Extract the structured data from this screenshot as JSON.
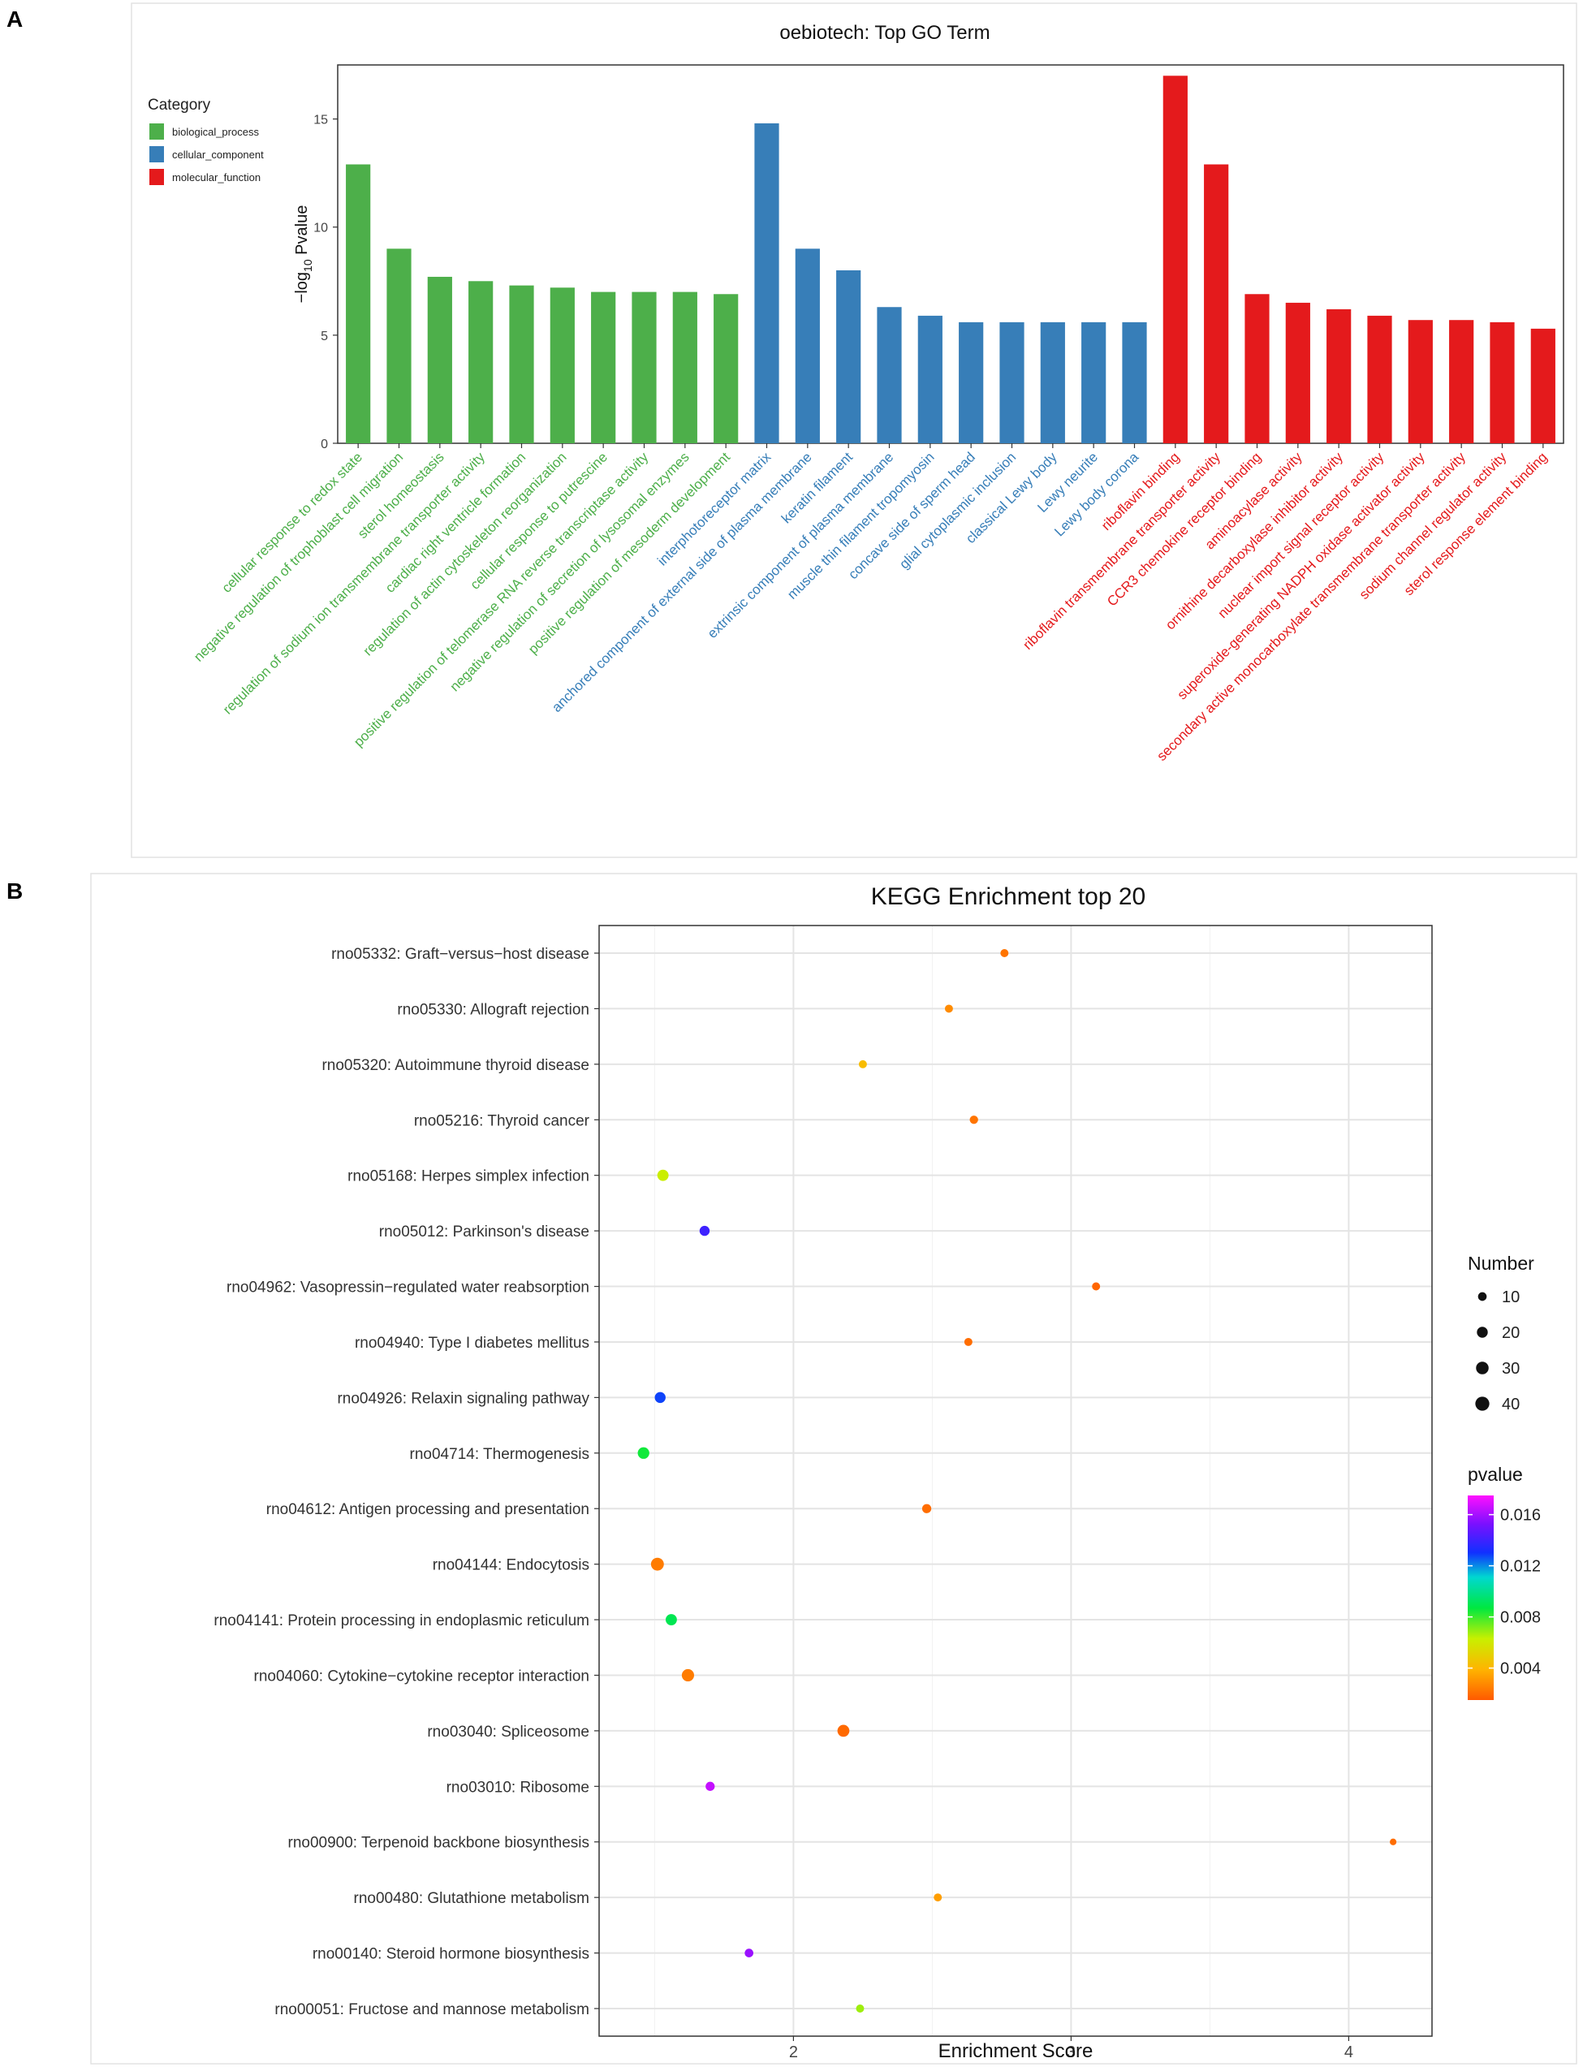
{
  "panels": {
    "a_label": "A",
    "b_label": "B"
  },
  "chart_data": [
    {
      "type": "bar",
      "title": "oebiotech: Top GO Term",
      "ylabel_prefix": "−log",
      "ylabel_sub": "10",
      "ylabel_suffix": " Pvalue",
      "ylim": [
        0,
        17.5
      ],
      "yticks": [
        0,
        5,
        10,
        15
      ],
      "legend": {
        "title": "Category",
        "position": "top-left",
        "items": [
          {
            "name": "biological_process",
            "color": "#4daf4a"
          },
          {
            "name": "cellular_component",
            "color": "#377eb8"
          },
          {
            "name": "molecular_function",
            "color": "#e41a1c"
          }
        ]
      },
      "categories": [
        "cellular response to redox state",
        "negative regulation of trophoblast cell migration",
        "sterol homeostasis",
        "regulation of sodium ion transmembrane transporter activity",
        "cardiac right ventricle formation",
        "regulation of actin cytoskeleton reorganization",
        "cellular response to putrescine",
        "positive regulation of telomerase RNA reverse transcriptase activity",
        "negative regulation of secretion of lysosomal enzymes",
        "positive regulation of mesoderm development",
        "interphotoreceptor matrix",
        "anchored component of external side of plasma membrane",
        "keratin filament",
        "extrinsic component of plasma membrane",
        "muscle thin filament tropomyosin",
        "concave side of sperm head",
        "glial cytoplasmic inclusion",
        "classical Lewy body",
        "Lewy neurite",
        "Lewy body corona",
        "riboflavin binding",
        "riboflavin transmembrane transporter activity",
        "CCR3 chemokine receptor binding",
        "aminoacylase activity",
        "ornithine decarboxylase inhibitor activity",
        "nuclear import signal receptor activity",
        "superoxide-generating NADPH oxidase activator activity",
        "secondary active monocarboxylate transmembrane transporter activity",
        "sodium channel regulator activity",
        "sterol response element binding"
      ],
      "values": [
        12.9,
        9.0,
        7.7,
        7.5,
        7.3,
        7.2,
        7.0,
        7.0,
        7.0,
        6.9,
        14.8,
        9.0,
        8.0,
        6.3,
        5.9,
        5.6,
        5.6,
        5.6,
        5.6,
        5.6,
        17.0,
        12.9,
        6.9,
        6.5,
        6.2,
        5.9,
        5.7,
        5.7,
        5.6,
        5.3
      ],
      "groups": [
        0,
        0,
        0,
        0,
        0,
        0,
        0,
        0,
        0,
        0,
        1,
        1,
        1,
        1,
        1,
        1,
        1,
        1,
        1,
        1,
        2,
        2,
        2,
        2,
        2,
        2,
        2,
        2,
        2,
        2
      ]
    },
    {
      "type": "scatter",
      "title": "KEGG Enrichment top 20",
      "xlabel": "Enrichment Score",
      "xlim": [
        1.3,
        4.3
      ],
      "xticks": [
        2,
        3,
        4
      ],
      "legend_size": {
        "title": "Number",
        "values": [
          10,
          20,
          30,
          40
        ]
      },
      "legend_color": {
        "title": "pvalue",
        "ticks": [
          "0.016",
          "0.012",
          "0.008",
          "0.004"
        ],
        "tick_values": [
          0.016,
          0.012,
          0.008,
          0.004
        ],
        "range": [
          0.0015,
          0.0175
        ]
      },
      "points": [
        {
          "label": "rno05332: Graft−versus−host disease",
          "x": 2.76,
          "number": 8,
          "pvalue": 0.0022
        },
        {
          "label": "rno05330: Allograft rejection",
          "x": 2.56,
          "number": 8,
          "pvalue": 0.0028
        },
        {
          "label": "rno05320: Autoimmune thyroid disease",
          "x": 2.25,
          "number": 8,
          "pvalue": 0.0042
        },
        {
          "label": "rno05216: Thyroid cancer",
          "x": 2.65,
          "number": 9,
          "pvalue": 0.0022
        },
        {
          "label": "rno05168: Herpes simplex infection",
          "x": 1.53,
          "number": 22,
          "pvalue": 0.0062
        },
        {
          "label": "rno05012: Parkinson's disease",
          "x": 1.68,
          "number": 16,
          "pvalue": 0.014
        },
        {
          "label": "rno04962: Vasopressin−regulated water reabsorption",
          "x": 3.09,
          "number": 8,
          "pvalue": 0.0018
        },
        {
          "label": "rno04940: Type I diabetes mellitus",
          "x": 2.63,
          "number": 8,
          "pvalue": 0.002
        },
        {
          "label": "rno04926: Relaxin signaling pathway",
          "x": 1.52,
          "number": 20,
          "pvalue": 0.0128
        },
        {
          "label": "rno04714: Thermogenesis",
          "x": 1.46,
          "number": 24,
          "pvalue": 0.0085
        },
        {
          "label": "rno04612: Antigen processing and presentation",
          "x": 2.48,
          "number": 12,
          "pvalue": 0.002
        },
        {
          "label": "rno04144: Endocytosis",
          "x": 1.51,
          "number": 32,
          "pvalue": 0.0024
        },
        {
          "label": "rno04141: Protein processing in endoplasmic reticulum",
          "x": 1.56,
          "number": 22,
          "pvalue": 0.009
        },
        {
          "label": "rno04060: Cytokine−cytokine receptor interaction",
          "x": 1.62,
          "number": 28,
          "pvalue": 0.0024
        },
        {
          "label": "rno03040: Spliceosome",
          "x": 2.18,
          "number": 26,
          "pvalue": 0.0019
        },
        {
          "label": "rno03010: Ribosome",
          "x": 1.7,
          "number": 12,
          "pvalue": 0.0165
        },
        {
          "label": "rno00900: Terpenoid backbone biosynthesis",
          "x": 4.16,
          "number": 4,
          "pvalue": 0.002
        },
        {
          "label": "rno00480: Glutathione metabolism",
          "x": 2.52,
          "number": 8,
          "pvalue": 0.0033
        },
        {
          "label": "rno00140: Steroid hormone biosynthesis",
          "x": 1.84,
          "number": 10,
          "pvalue": 0.0158
        },
        {
          "label": "rno00051: Fructose and mannose metabolism",
          "x": 2.24,
          "number": 8,
          "pvalue": 0.0068
        }
      ]
    }
  ]
}
